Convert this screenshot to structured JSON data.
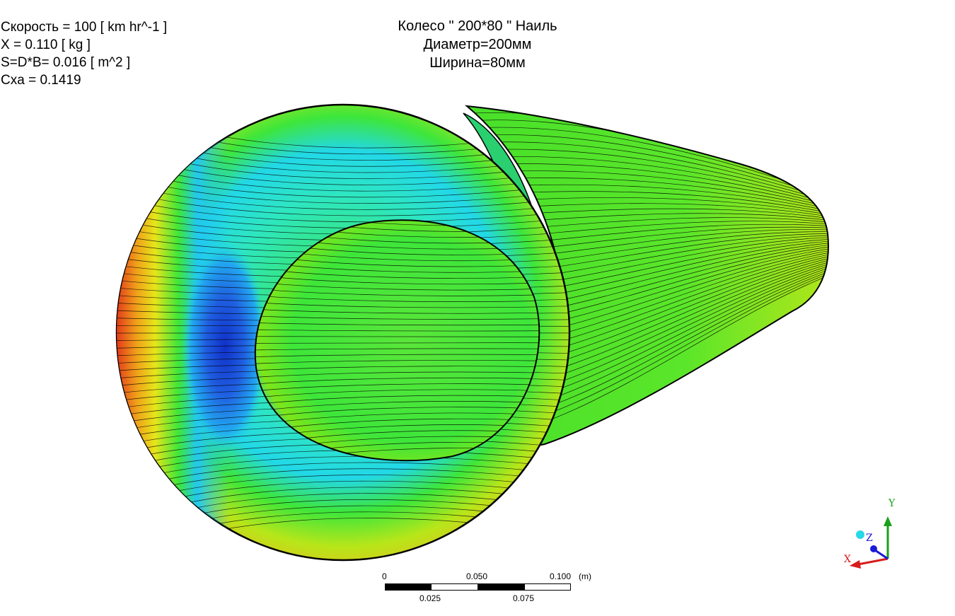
{
  "info": {
    "line1": "Скорость = 100 [ km hr^-1 ]",
    "line2": "X = 0.110 [ kg ]",
    "line3": "S=D*B= 0.016 [ m^2 ]",
    "line4": "Cxa = 0.1419"
  },
  "title": {
    "line1": "Колесо \" 200*80 \" Наиль",
    "line2": "Диаметр=200мм",
    "line3": "Ширина=80мм"
  },
  "scale_bar": {
    "top_labels": [
      "0",
      "0.050",
      "0.100"
    ],
    "unit": "(m)",
    "bottom_labels": [
      "0.025",
      "0.075"
    ]
  },
  "axes_triad": {
    "x_label": "X",
    "y_label": "Y",
    "z_label": "Z",
    "colors": {
      "x": "#d81b1b",
      "y": "#1aa01a",
      "z": "#1a1ad8"
    }
  },
  "colormap": [
    "#1f3fd6",
    "#1fa7f0",
    "#26e0d6",
    "#3ee63a",
    "#a8e61a",
    "#e6e61a",
    "#f0a01a",
    "#e6301a"
  ]
}
